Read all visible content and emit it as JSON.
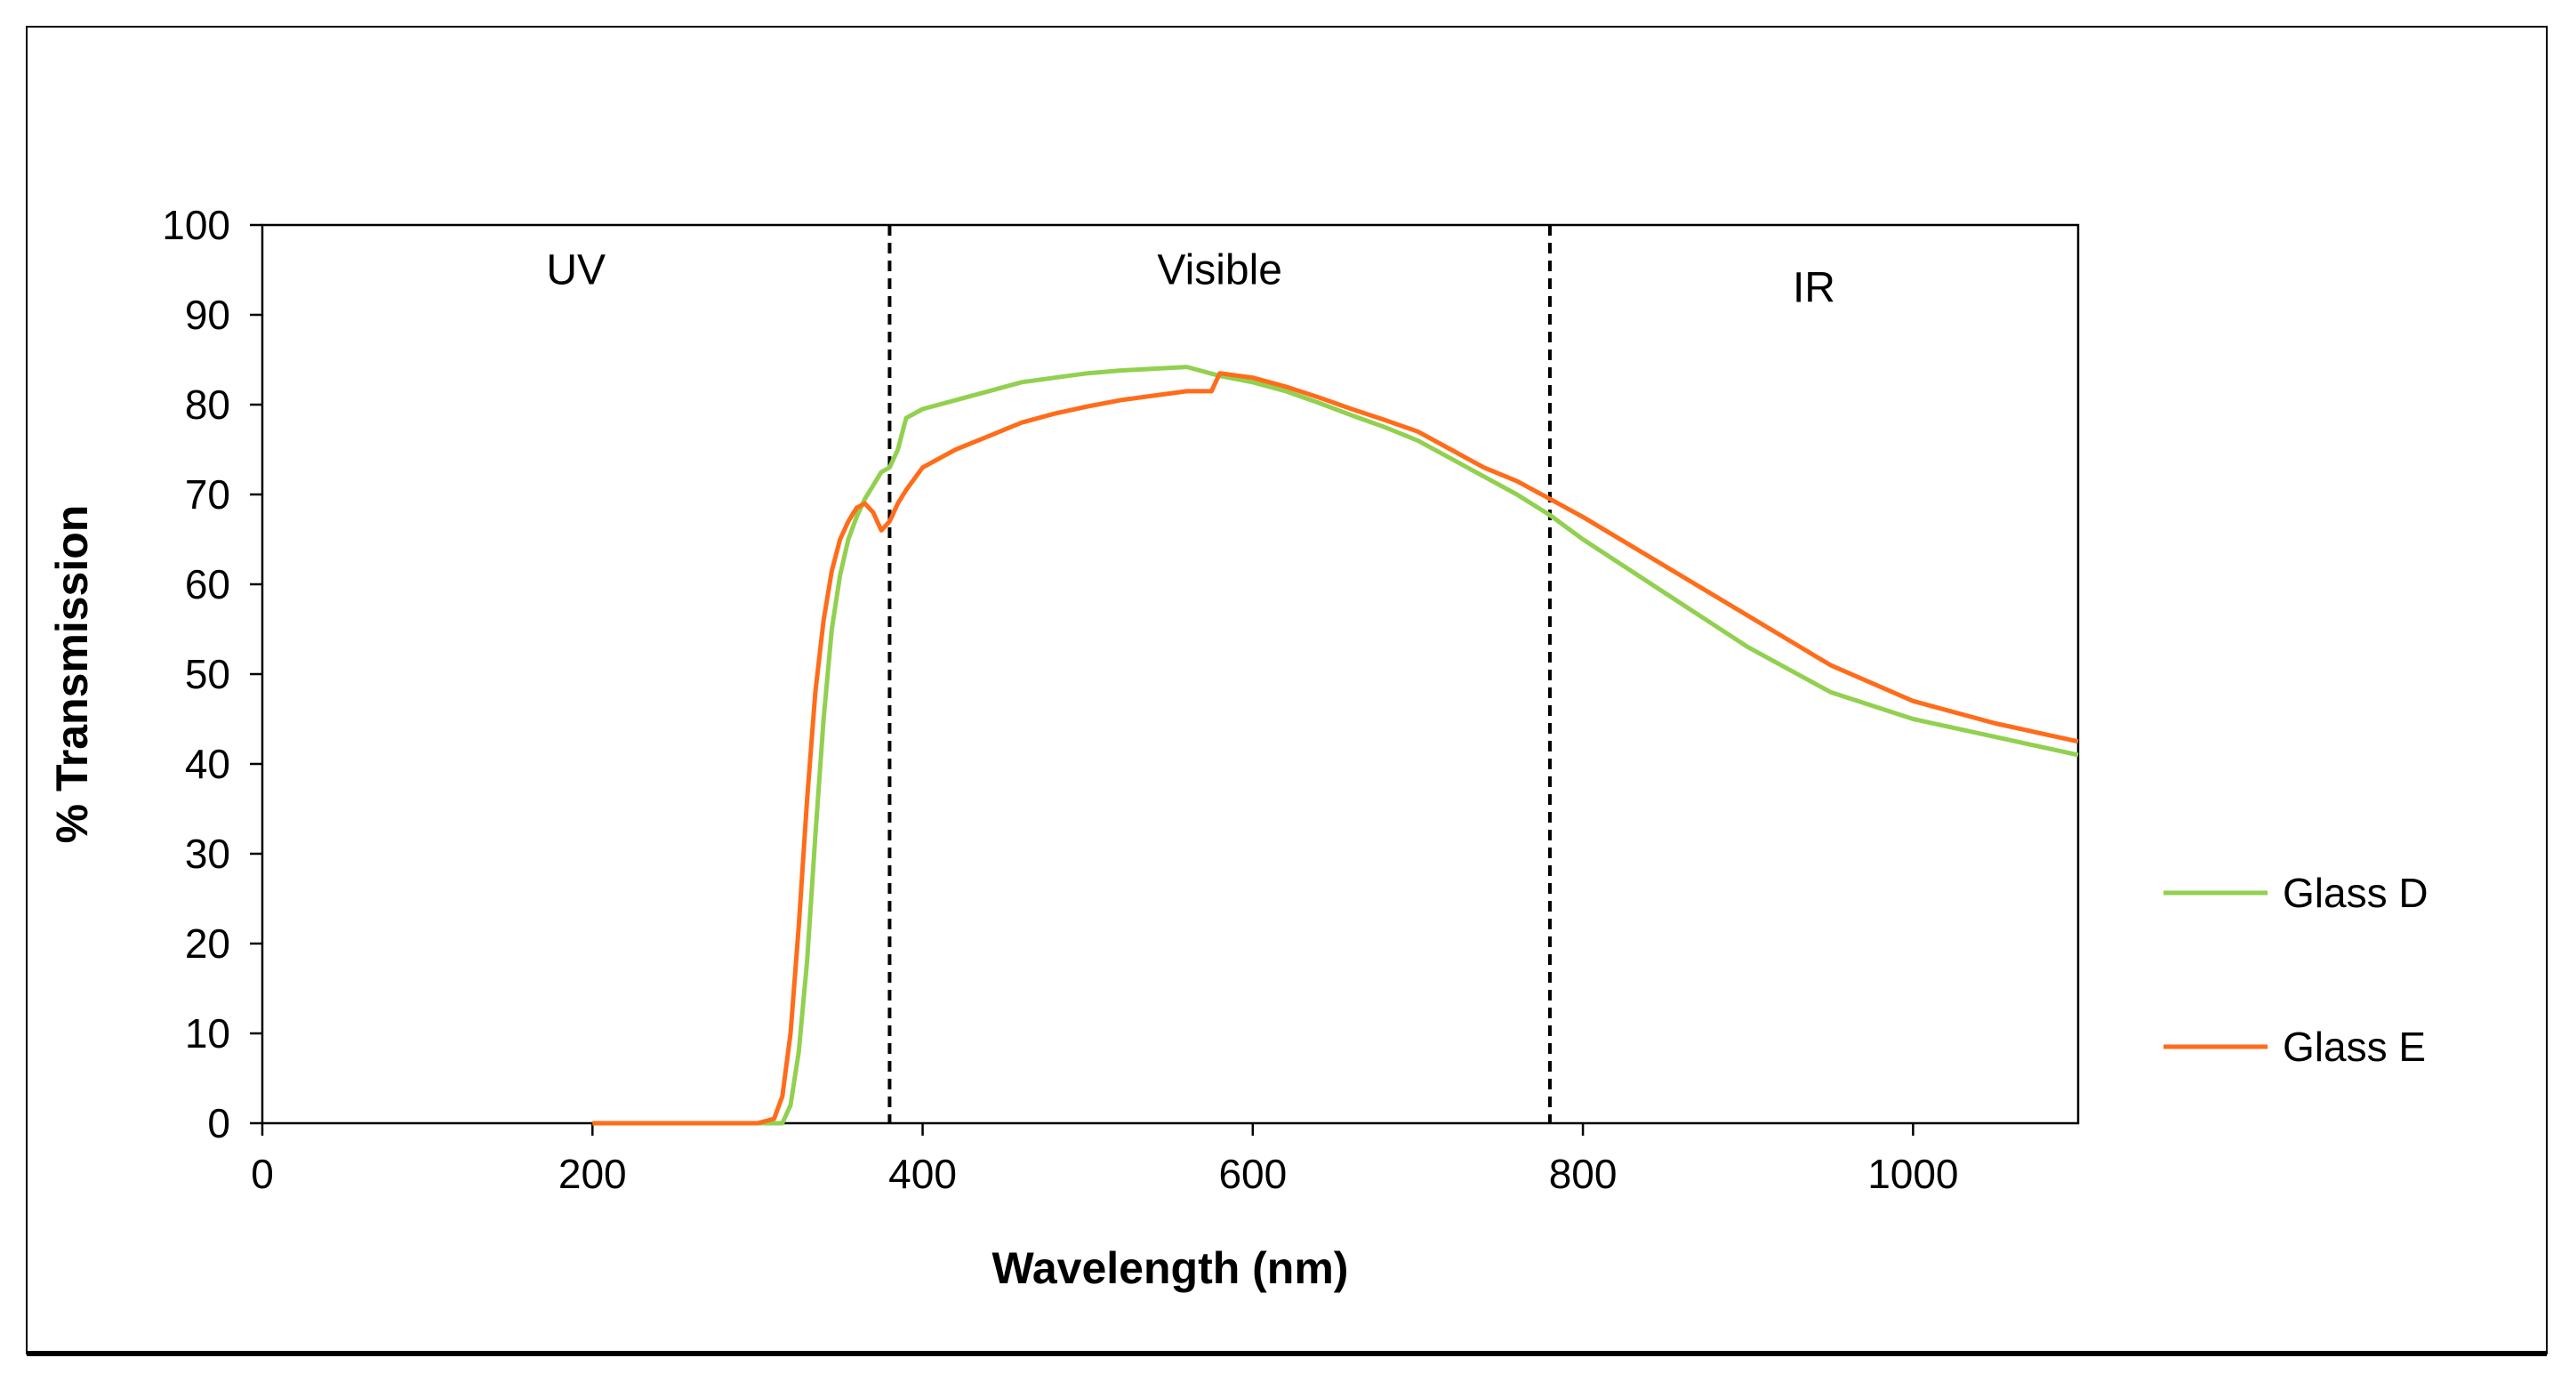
{
  "chart_data": {
    "type": "line",
    "title": "",
    "xlabel": "Wavelength  (nm)",
    "ylabel": "% Transmission",
    "xlim": [
      0,
      1100
    ],
    "ylim": [
      0,
      100
    ],
    "xticks": [
      0,
      200,
      400,
      600,
      800,
      1000
    ],
    "yticks": [
      0,
      10,
      20,
      30,
      40,
      50,
      60,
      70,
      80,
      90,
      100
    ],
    "grid": false,
    "legend_position": "right",
    "regions": [
      {
        "label": "UV",
        "x_center": 190,
        "y_position": 95
      },
      {
        "label": "Visible",
        "x_center": 580,
        "y_position": 95
      },
      {
        "label": "IR",
        "x_center": 940,
        "y_position": 93
      }
    ],
    "dividers": [
      380,
      780
    ],
    "series": [
      {
        "name": "Glass D",
        "color": "#92d050",
        "x": [
          200,
          300,
          315,
          320,
          325,
          330,
          335,
          340,
          345,
          350,
          355,
          360,
          365,
          370,
          375,
          380,
          385,
          390,
          400,
          420,
          440,
          460,
          480,
          500,
          520,
          540,
          560,
          580,
          600,
          620,
          640,
          660,
          680,
          700,
          720,
          740,
          760,
          780,
          800,
          850,
          900,
          950,
          1000,
          1050,
          1100
        ],
        "y": [
          0,
          0,
          0,
          2,
          8,
          18,
          32,
          45,
          55,
          61,
          65,
          67.5,
          69.5,
          71,
          72.5,
          73,
          75,
          78.5,
          79.5,
          80.5,
          81.5,
          82.5,
          83,
          83.5,
          83.8,
          84,
          84.2,
          83.2,
          82.5,
          81.5,
          80.2,
          78.8,
          77.5,
          76,
          74,
          72,
          70,
          67.7,
          65,
          59,
          53,
          48,
          45,
          43,
          41
        ]
      },
      {
        "name": "Glass E",
        "color": "#ff6c1a",
        "x": [
          200,
          300,
          310,
          315,
          320,
          325,
          330,
          335,
          340,
          345,
          350,
          355,
          360,
          365,
          370,
          375,
          380,
          385,
          390,
          400,
          420,
          440,
          460,
          480,
          500,
          520,
          540,
          560,
          575,
          580,
          600,
          620,
          640,
          660,
          680,
          700,
          720,
          740,
          760,
          780,
          800,
          850,
          900,
          950,
          1000,
          1050,
          1100
        ],
        "y": [
          0,
          0,
          0.5,
          3,
          10,
          22,
          36,
          48,
          56,
          61.5,
          65,
          67,
          68.5,
          69,
          68,
          66,
          67,
          69,
          70.5,
          73,
          75,
          76.5,
          78,
          79,
          79.8,
          80.5,
          81,
          81.5,
          81.5,
          83.5,
          83,
          82,
          80.8,
          79.5,
          78.3,
          77,
          75,
          73,
          71.5,
          69.5,
          67.5,
          62,
          56.5,
          51,
          47,
          44.5,
          42.5
        ]
      }
    ]
  }
}
